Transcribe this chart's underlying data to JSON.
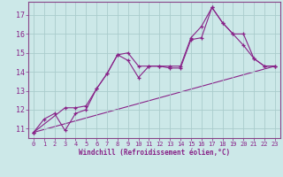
{
  "xlabel": "Windchill (Refroidissement éolien,°C)",
  "background_color": "#cce8e8",
  "grid_color": "#aacccc",
  "line_color": "#882288",
  "xlim": [
    -0.5,
    23.5
  ],
  "ylim": [
    10.5,
    17.7
  ],
  "yticks": [
    11,
    12,
    13,
    14,
    15,
    16,
    17
  ],
  "xticks": [
    0,
    1,
    2,
    3,
    4,
    5,
    6,
    7,
    8,
    9,
    10,
    11,
    12,
    13,
    14,
    15,
    16,
    17,
    18,
    19,
    20,
    21,
    22,
    23
  ],
  "series1_x": [
    0,
    1,
    2,
    3,
    4,
    5,
    6,
    7,
    8,
    9,
    10,
    11,
    12,
    13,
    14,
    15,
    16,
    17,
    18,
    19,
    20,
    21,
    22,
    23
  ],
  "series1_y": [
    10.8,
    11.5,
    11.8,
    10.9,
    11.8,
    12.0,
    13.1,
    13.9,
    14.9,
    14.6,
    13.7,
    14.3,
    14.3,
    14.2,
    14.2,
    15.7,
    15.8,
    17.4,
    16.6,
    16.0,
    15.4,
    14.7,
    14.3,
    14.3
  ],
  "series2_x": [
    0,
    23
  ],
  "series2_y": [
    10.8,
    14.3
  ],
  "series3_x": [
    0,
    3,
    4,
    5,
    6,
    7,
    8,
    9,
    10,
    11,
    12,
    13,
    14,
    15,
    16,
    17,
    18,
    19,
    20,
    21,
    22,
    23
  ],
  "series3_y": [
    10.8,
    12.1,
    12.1,
    12.2,
    13.1,
    13.9,
    14.9,
    15.0,
    14.3,
    14.3,
    14.3,
    14.3,
    14.3,
    15.8,
    16.4,
    17.4,
    16.6,
    16.0,
    16.0,
    14.7,
    14.3,
    14.3
  ]
}
